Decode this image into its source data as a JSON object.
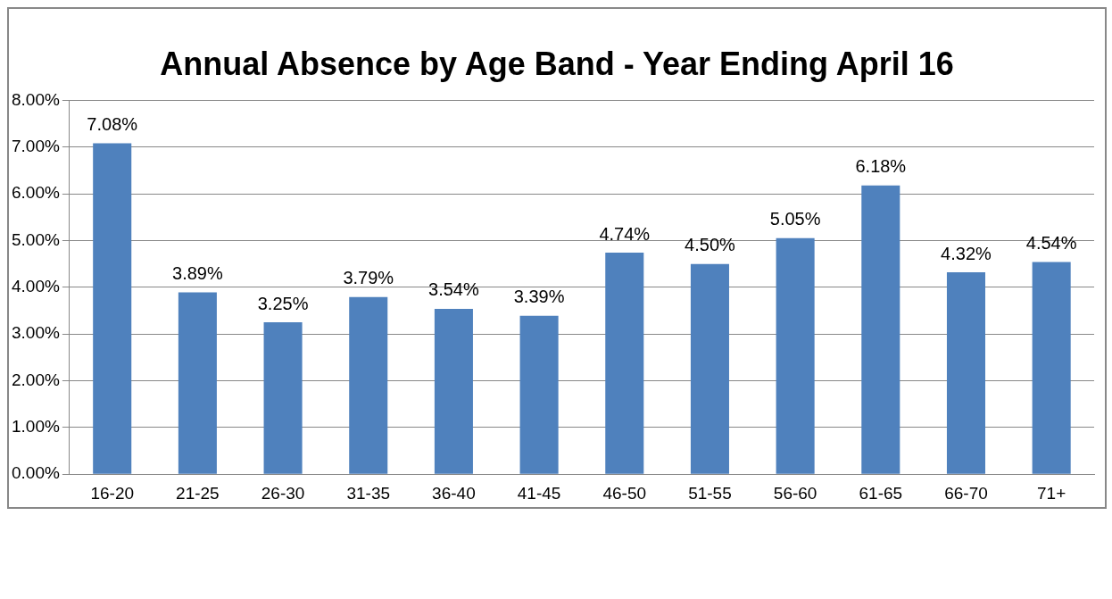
{
  "chart_data": {
    "type": "bar",
    "title": "Annual Absence by Age Band - Year Ending April 16",
    "categories": [
      "16-20",
      "21-25",
      "26-30",
      "31-35",
      "36-40",
      "41-45",
      "46-50",
      "51-55",
      "56-60",
      "61-65",
      "66-70",
      "71+"
    ],
    "values": [
      7.08,
      3.89,
      3.25,
      3.79,
      3.54,
      3.39,
      4.74,
      4.5,
      5.05,
      6.18,
      4.32,
      4.54
    ],
    "value_labels": [
      "7.08%",
      "3.89%",
      "3.25%",
      "3.79%",
      "3.54%",
      "3.39%",
      "4.74%",
      "4.50%",
      "5.05%",
      "6.18%",
      "4.32%",
      "4.54%"
    ],
    "color": "#4f81bd",
    "ylim": [
      0,
      8
    ],
    "yticks": [
      {
        "value": 0,
        "label": "0.00%"
      },
      {
        "value": 1,
        "label": "1.00%"
      },
      {
        "value": 2,
        "label": "2.00%"
      },
      {
        "value": 3,
        "label": "3.00%"
      },
      {
        "value": 4,
        "label": "4.00%"
      },
      {
        "value": 5,
        "label": "5.00%"
      },
      {
        "value": 6,
        "label": "6.00%"
      },
      {
        "value": 7,
        "label": "7.00%"
      },
      {
        "value": 8,
        "label": "8.00%"
      }
    ],
    "grid": "y",
    "legend": false
  }
}
